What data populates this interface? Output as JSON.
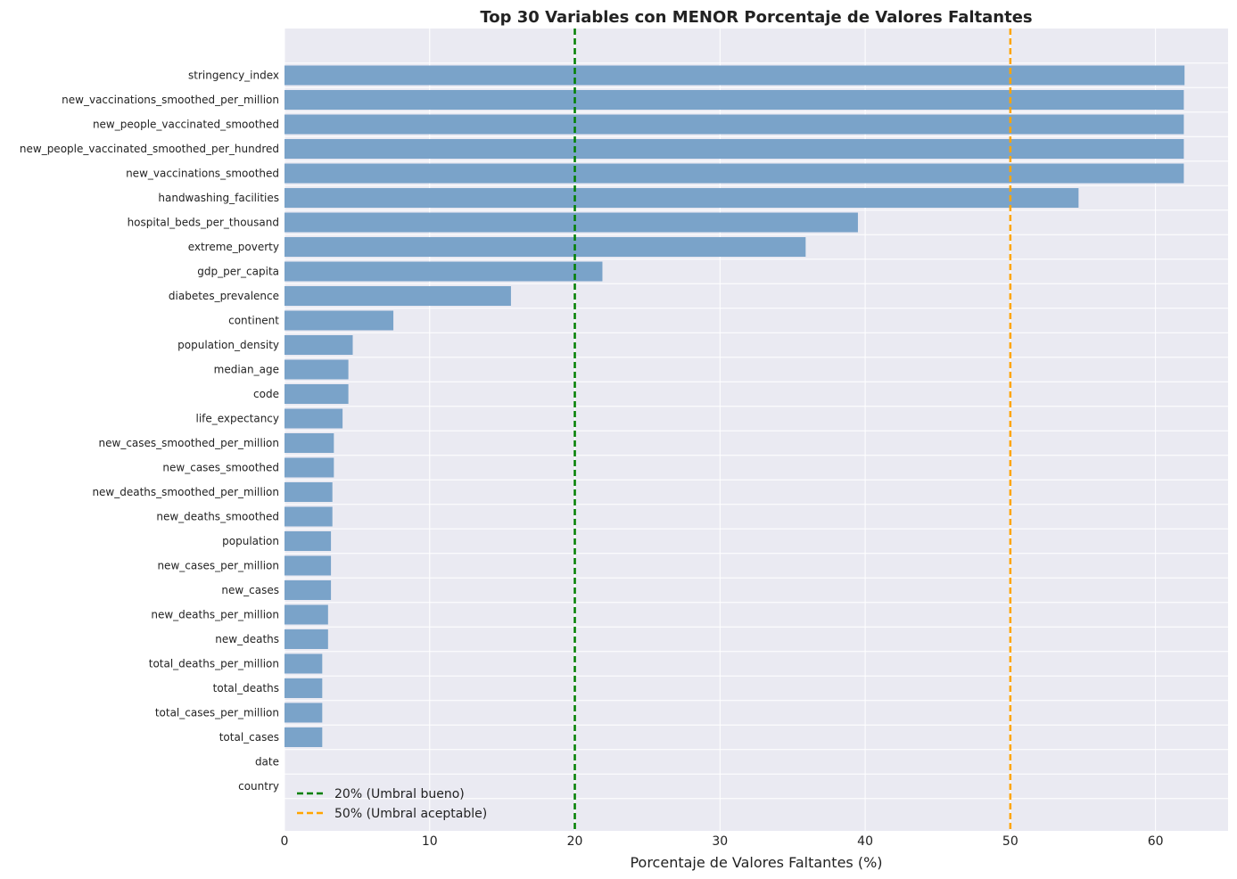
{
  "chart_data": {
    "type": "bar",
    "orientation": "horizontal",
    "title": "Top 30 Variables con MENOR Porcentaje de Valores Faltantes",
    "xlabel": "Porcentaje de Valores Faltantes (%)",
    "ylabel": "",
    "xlim": [
      0,
      65
    ],
    "xticks": [
      0,
      10,
      20,
      30,
      40,
      50,
      60
    ],
    "grid": true,
    "bar_color": "#7aa3c9",
    "background_color": "#eaeaf2",
    "categories": [
      "stringency_index",
      "new_vaccinations_smoothed_per_million",
      "new_people_vaccinated_smoothed",
      "new_people_vaccinated_smoothed_per_hundred",
      "new_vaccinations_smoothed",
      "handwashing_facilities",
      "hospital_beds_per_thousand",
      "extreme_poverty",
      "gdp_per_capita",
      "diabetes_prevalence",
      "continent",
      "population_density",
      "median_age",
      "code",
      "life_expectancy",
      "new_cases_smoothed_per_million",
      "new_cases_smoothed",
      "new_deaths_smoothed_per_million",
      "new_deaths_smoothed",
      "population",
      "new_cases_per_million",
      "new_cases",
      "new_deaths_per_million",
      "new_deaths",
      "total_deaths_per_million",
      "total_deaths",
      "total_cases_per_million",
      "total_cases",
      "date",
      "country"
    ],
    "values": [
      62.0,
      61.95,
      61.95,
      61.95,
      61.95,
      54.7,
      39.5,
      35.9,
      21.9,
      15.6,
      7.5,
      4.7,
      4.4,
      4.4,
      4.0,
      3.4,
      3.4,
      3.3,
      3.3,
      3.2,
      3.2,
      3.2,
      3.0,
      3.0,
      2.6,
      2.6,
      2.6,
      2.6,
      0,
      0
    ],
    "reference_lines": [
      {
        "value": 20,
        "label": "20% (Umbral bueno)",
        "color": "#008000"
      },
      {
        "value": 50,
        "label": "50% (Umbral aceptable)",
        "color": "#ffa500"
      }
    ],
    "legend_position": "bottom-left"
  }
}
